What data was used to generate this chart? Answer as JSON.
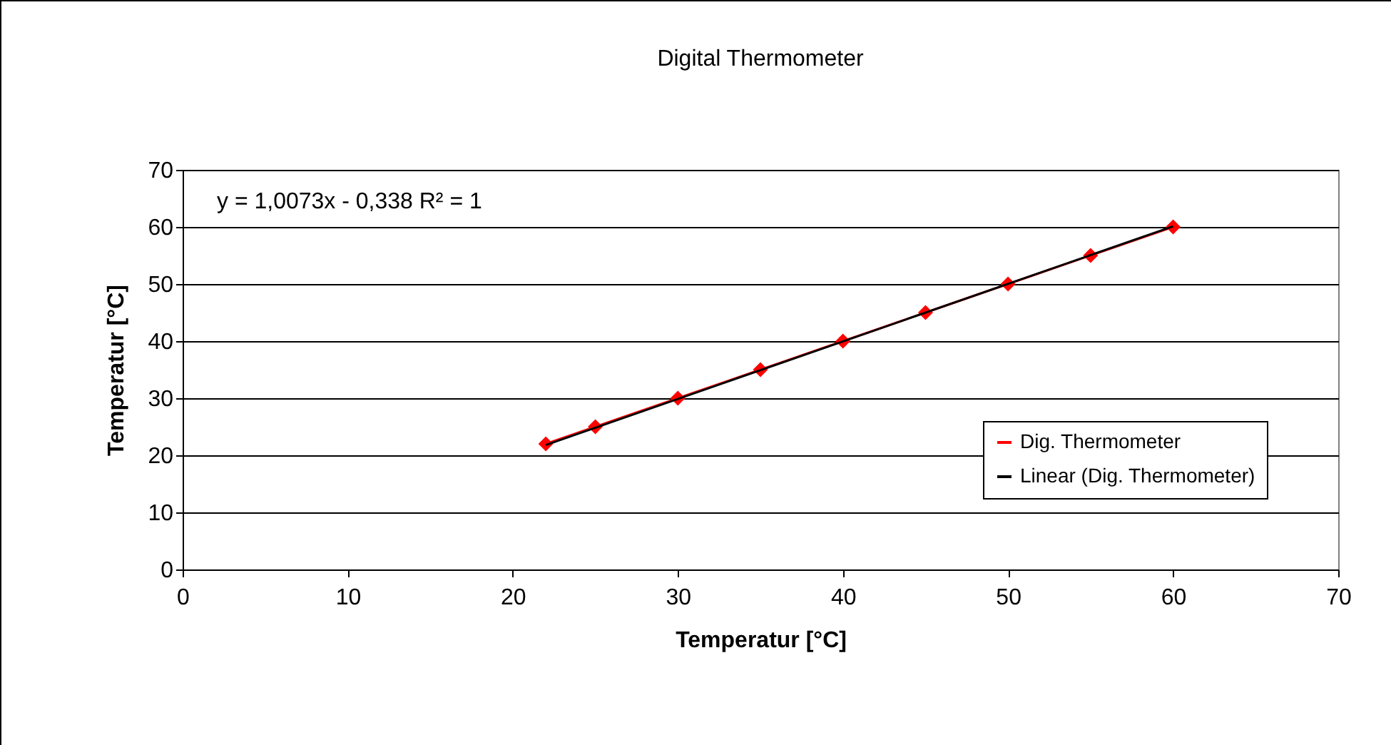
{
  "chart_data": {
    "type": "line",
    "title": "Digital Thermometer",
    "xlabel": "Temperatur [°C]",
    "ylabel": "Temperatur [°C]",
    "x": [
      22,
      25,
      30,
      35,
      40,
      45,
      50,
      55,
      60
    ],
    "series": [
      {
        "name": "Dig. Thermometer",
        "color": "#ff0000",
        "marker": "diamond",
        "values": [
          22,
          25,
          30,
          35,
          40,
          45,
          50,
          55,
          60
        ]
      },
      {
        "name": "Linear (Dig. Thermometer)",
        "color": "#000000",
        "marker": "none",
        "x": [
          22,
          60
        ],
        "values": [
          21.8,
          60.1
        ]
      }
    ],
    "xlim": [
      0,
      70
    ],
    "xticks": [
      0,
      10,
      20,
      30,
      40,
      50,
      60,
      70
    ],
    "ylim": [
      0,
      70
    ],
    "yticks": [
      0,
      10,
      20,
      30,
      40,
      50,
      60,
      70
    ],
    "grid": "y",
    "legend": "bottom right",
    "line_style": "solid",
    "annotations": [
      "y = 1,0073x - 0,338 R² = 1"
    ]
  }
}
